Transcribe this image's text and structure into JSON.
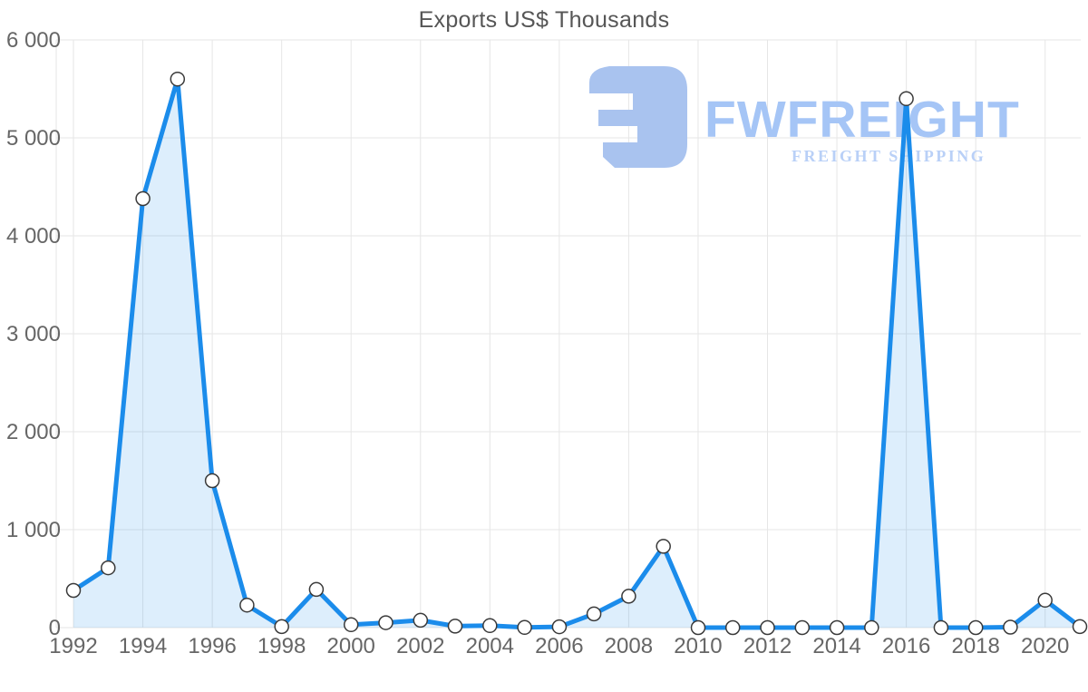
{
  "chart": {
    "title": "Exports US$ Thousands",
    "title_color": "#565656",
    "axis_label_color": "#666666",
    "gridline_color": "#e6e6e6"
  },
  "watermark": {
    "brand": "FWFREIGHT",
    "tagline": "FREIGHT SHIPPING",
    "icon": "fwfreight-logo-mark",
    "icon_color": "#a9c3ef",
    "brand_color": "#a5c5f6",
    "tagline_color": "#b9d0f7"
  },
  "chart_data": {
    "type": "area",
    "title": "Exports US$ Thousands",
    "xlabel": "",
    "ylabel": "",
    "x": [
      1992,
      1993,
      1994,
      1995,
      1996,
      1997,
      1998,
      1999,
      2000,
      2001,
      2002,
      2003,
      2004,
      2005,
      2006,
      2007,
      2008,
      2009,
      2010,
      2011,
      2012,
      2013,
      2014,
      2015,
      2016,
      2017,
      2018,
      2019,
      2020,
      2021
    ],
    "values": [
      380,
      610,
      4380,
      5600,
      1500,
      230,
      10,
      390,
      30,
      50,
      75,
      15,
      20,
      2,
      8,
      140,
      320,
      830,
      0,
      0,
      0,
      0,
      0,
      0,
      5400,
      0,
      0,
      5,
      280,
      10
    ],
    "ylim": [
      0,
      6000
    ],
    "y_ticks": [
      0,
      1000,
      2000,
      3000,
      4000,
      5000,
      6000
    ],
    "y_tick_labels": [
      "0",
      "1 000",
      "2 000",
      "3 000",
      "4 000",
      "5 000",
      "6 000"
    ],
    "x_tick_years": [
      1992,
      1994,
      1996,
      1998,
      2000,
      2002,
      2004,
      2006,
      2008,
      2010,
      2012,
      2014,
      2016,
      2018,
      2020
    ],
    "grid": true,
    "legend": "none",
    "line_color": "#1b8ceb",
    "fill_color": "#1b8ceb",
    "fill_opacity": 0.15,
    "marker_fill": "#ffffff",
    "marker_stroke": "#3a3a3a"
  }
}
